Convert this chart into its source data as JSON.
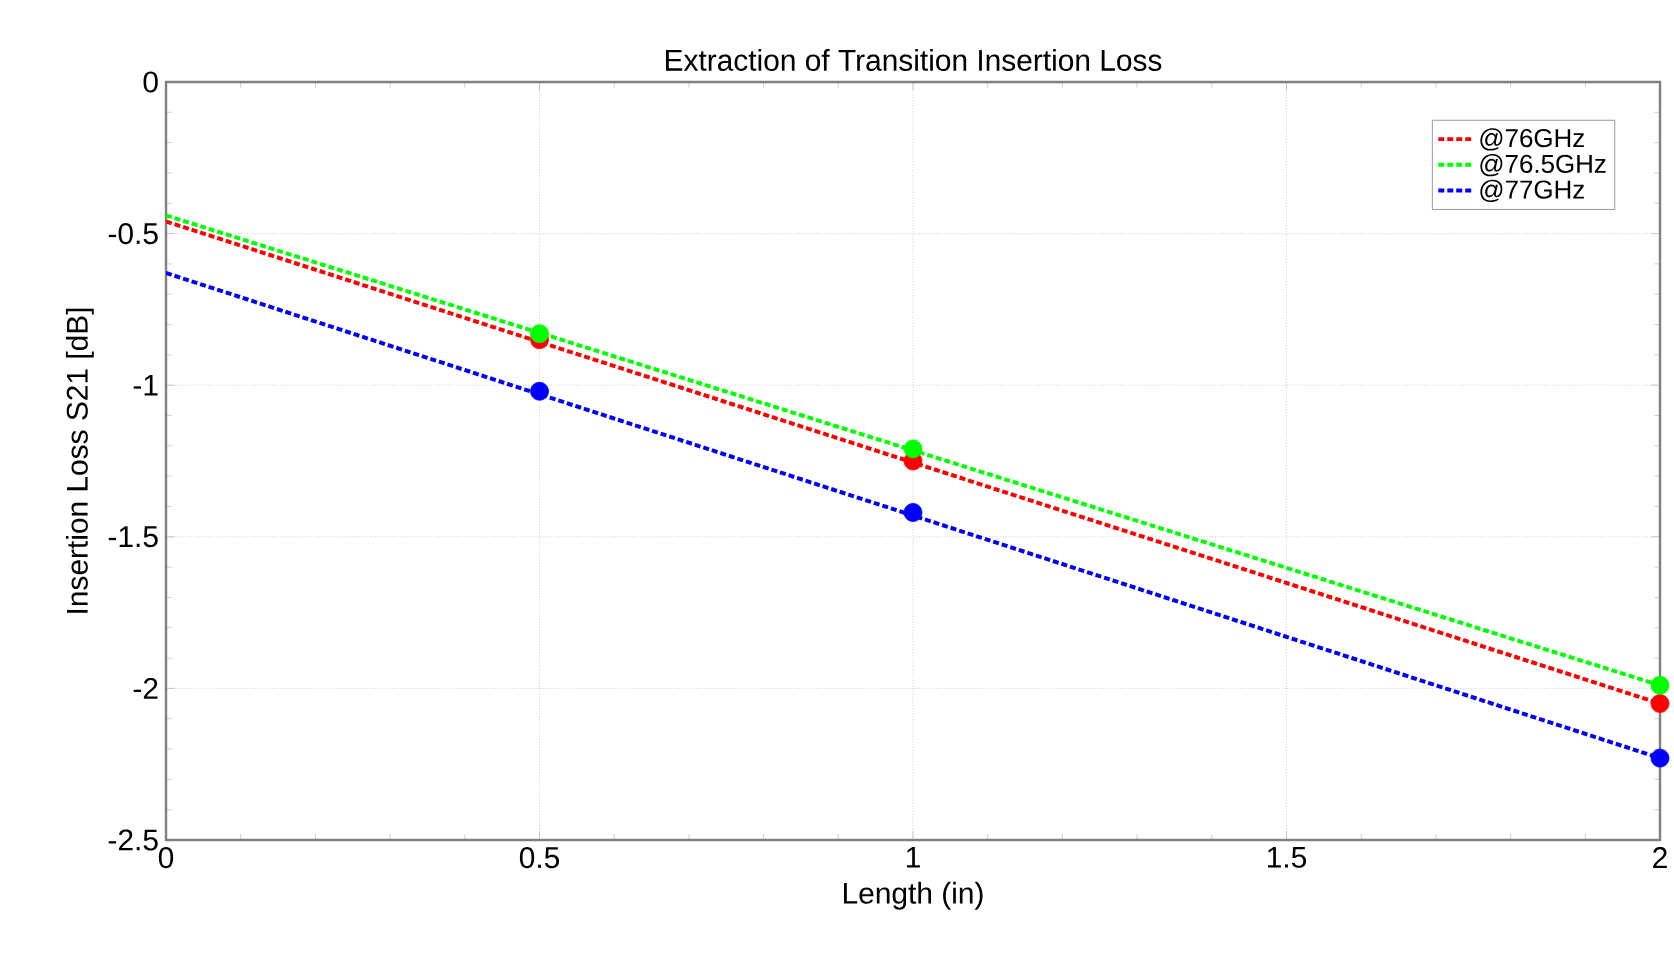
{
  "chart_data": {
    "type": "line",
    "title": "Extraction of Transition Insertion Loss",
    "xlabel": "Length (in)",
    "ylabel": "Insertion Loss S21 [dB]",
    "series": [
      {
        "name": "@76GHz",
        "color": "#ff0000",
        "line_style": "dashed",
        "x": [
          0,
          2
        ],
        "values": [
          -0.46,
          -2.05
        ]
      },
      {
        "name": "@76.5GHz",
        "color": "#00ff00",
        "line_style": "dashed",
        "x": [
          0,
          2
        ],
        "values": [
          -0.44,
          -1.99
        ]
      },
      {
        "name": "@77GHz",
        "color": "#0000ff",
        "line_style": "dashed",
        "x": [
          0,
          2
        ],
        "values": [
          -0.63,
          -2.23
        ]
      },
      {
        "type": "scatter",
        "color": "#ff0000",
        "marker": "circle",
        "x": [
          0.5,
          1,
          2
        ],
        "values": [
          -0.85,
          -1.25,
          -2.05
        ]
      },
      {
        "type": "scatter",
        "color": "#00ff00",
        "marker": "circle",
        "x": [
          0.5,
          1,
          2
        ],
        "values": [
          -0.83,
          -1.21,
          -1.99
        ]
      },
      {
        "type": "scatter",
        "color": "#0000ff",
        "marker": "circle",
        "x": [
          0.5,
          1,
          2
        ],
        "values": [
          -1.02,
          -1.42,
          -2.23
        ]
      }
    ],
    "xlim": [
      0,
      2
    ],
    "ylim": [
      -2.5,
      0
    ],
    "xticks": [
      0,
      0.5,
      1,
      1.5,
      2
    ],
    "yticks": [
      -2.5,
      -2,
      -1.5,
      -1,
      -0.5,
      0
    ],
    "grid": true,
    "legend": "top right"
  }
}
